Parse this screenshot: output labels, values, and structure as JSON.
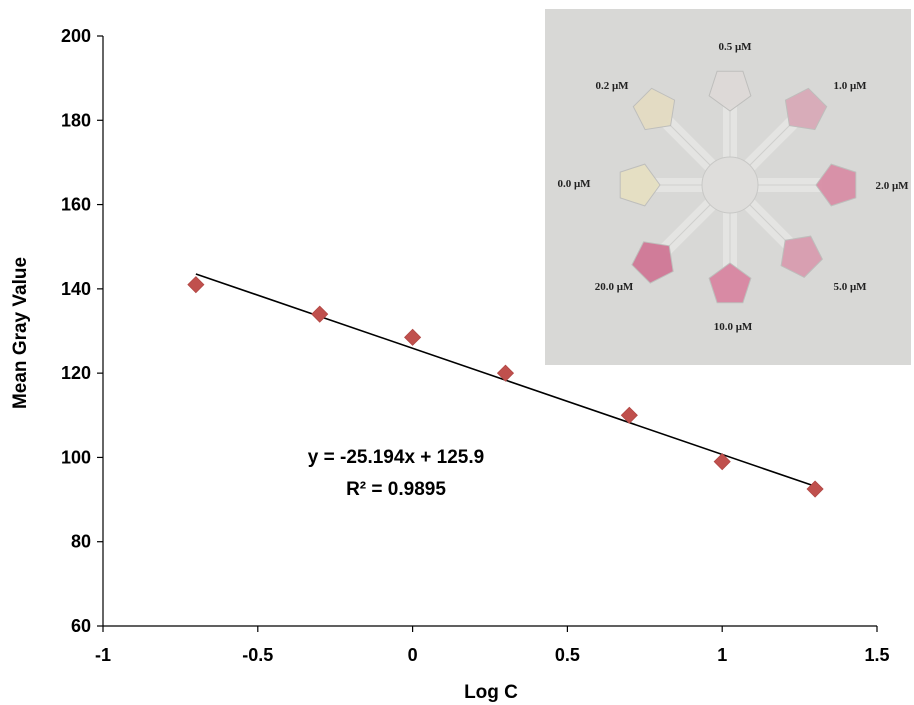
{
  "chart_data": {
    "type": "scatter",
    "title": "",
    "xlabel": "Log C",
    "ylabel": "Mean Gray Value",
    "xlim": [
      -1,
      1.5
    ],
    "ylim": [
      60,
      200
    ],
    "x_ticks": [
      -1,
      -0.5,
      0,
      0.5,
      1,
      1.5
    ],
    "x_tick_labels": [
      "-1",
      "-0.5",
      "0",
      "0.5",
      "1",
      "1.5"
    ],
    "y_ticks": [
      60,
      80,
      100,
      120,
      140,
      160,
      180,
      200
    ],
    "y_tick_labels": [
      "60",
      "80",
      "100",
      "120",
      "140",
      "160",
      "180",
      "200"
    ],
    "grid": false,
    "series": [
      {
        "x": [
          -0.7,
          -0.3,
          0,
          0.3,
          0.7,
          1.0,
          1.3
        ],
        "y": [
          141,
          134,
          128.5,
          120,
          110,
          99,
          92.5
        ],
        "marker": "diamond",
        "color": "#c0504d"
      }
    ],
    "trendline": {
      "slope": -25.194,
      "intercept": 125.9,
      "x_range": [
        -0.7,
        1.3
      ],
      "color": "#000000"
    },
    "annotations": {
      "equation": "y = -25.194x + 125.9",
      "r_squared": "R² = 0.9895"
    },
    "inset_photo": {
      "background": "#d8d8d6",
      "labels": [
        "0.0 μM",
        "0.2 μM",
        "0.5 μM",
        "1.0 μM",
        "2.0 μM",
        "5.0 μM",
        "10.0 μM",
        "20.0 μM"
      ],
      "pad_colors": [
        "#e6e0c2",
        "#e4dcc2",
        "#dedad8",
        "#d9aab8",
        "#d98ea6",
        "#d89cb0",
        "#d886a2",
        "#d07896"
      ]
    }
  }
}
